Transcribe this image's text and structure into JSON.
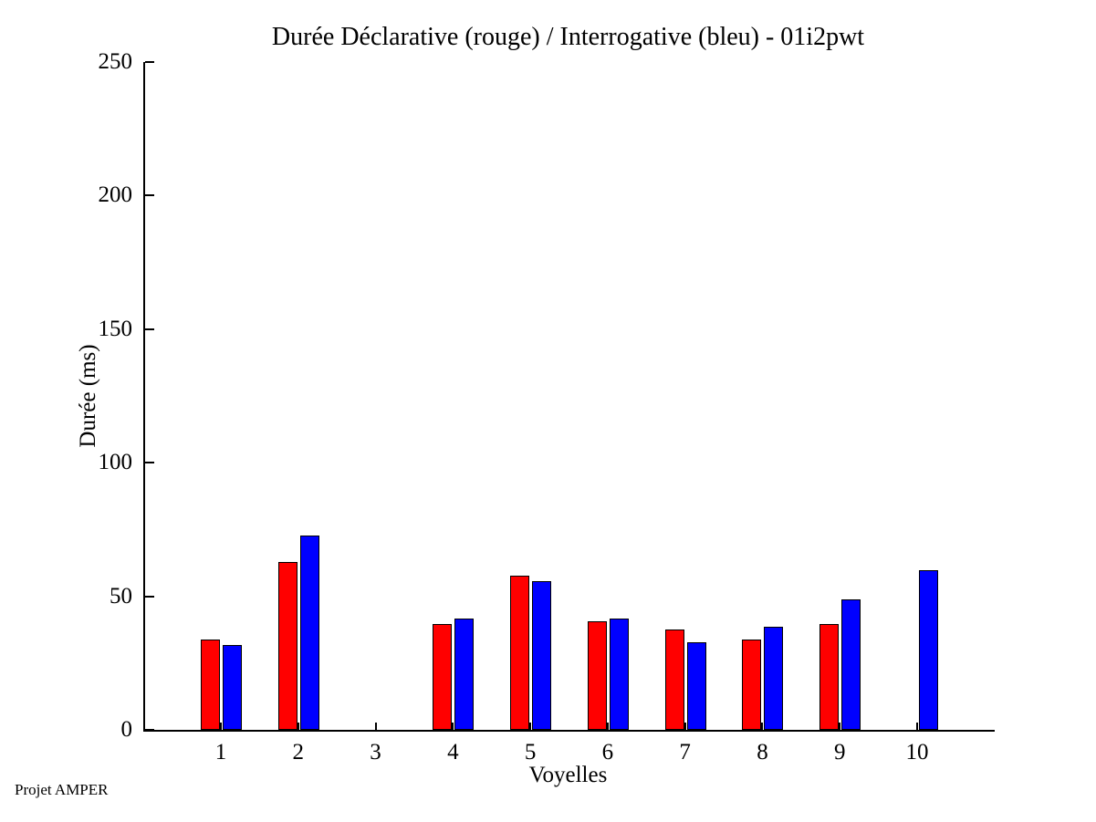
{
  "page": {
    "background": "#ffffff"
  },
  "footer": {
    "label": "Projet AMPER"
  },
  "chart_data": {
    "type": "bar",
    "title": "Durée Déclarative (rouge) / Interrogative (bleu) - 01i2pwt",
    "xlabel": "Voyelles",
    "ylabel": "Durée (ms)",
    "categories": [
      "1",
      "2",
      "3",
      "4",
      "5",
      "6",
      "7",
      "8",
      "9",
      "10"
    ],
    "series": [
      {
        "name": "Déclarative",
        "color": "#ff0000",
        "values": [
          33,
          62,
          0,
          39,
          57,
          40,
          37,
          33,
          39,
          0
        ]
      },
      {
        "name": "Interrogative",
        "color": "#0000ff",
        "values": [
          31,
          72,
          0,
          41,
          55,
          41,
          32,
          38,
          48,
          59
        ]
      }
    ],
    "ylim": [
      0,
      250
    ],
    "yticks": [
      0,
      50,
      100,
      150,
      200,
      250
    ],
    "grid": false,
    "legend_position": "none",
    "axis_color": "#000000",
    "annotations": [
      "Projet AMPER"
    ]
  }
}
